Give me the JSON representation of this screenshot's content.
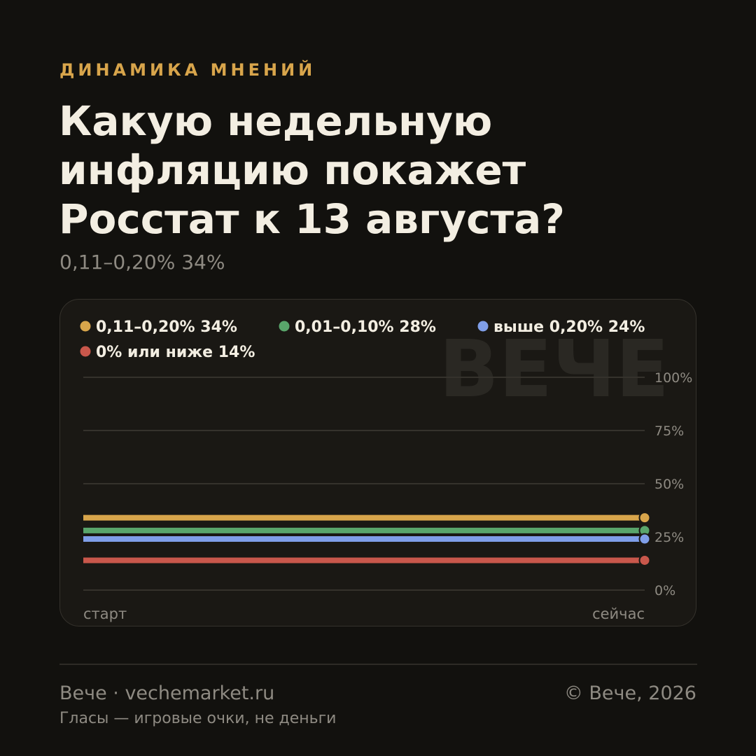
{
  "header": {
    "kicker": "ДИНАМИКА МНЕНИЙ",
    "title": "Какую недельную инфляцию покажет Росстат к 13 августа?",
    "subtitle": "0,11–0,20% 34%"
  },
  "watermark": "ВЕЧЕ",
  "chart_data": {
    "type": "line",
    "title": "",
    "xlabel": "",
    "ylabel": "",
    "x": [
      "старт",
      "сейчас"
    ],
    "x_tick_labels": [
      "старт",
      "сейчас"
    ],
    "ylim": [
      0,
      100
    ],
    "y_ticks": [
      0,
      25,
      50,
      75,
      100
    ],
    "y_tick_labels": [
      "0%",
      "25%",
      "50%",
      "75%",
      "100%"
    ],
    "grid": true,
    "legend_position": "top-left",
    "series": [
      {
        "name": "0,11–0,20%",
        "legend_label": "0,11–0,20% 34%",
        "color": "#d8a54b",
        "values": [
          34,
          34
        ]
      },
      {
        "name": "0,01–0,10%",
        "legend_label": "0,01–0,10% 28%",
        "color": "#59a56b",
        "values": [
          28,
          28
        ]
      },
      {
        "name": "выше 0,20%",
        "legend_label": "выше 0,20% 24%",
        "color": "#7f9ee8",
        "values": [
          24,
          24
        ]
      },
      {
        "name": "0% или ниже",
        "legend_label": "0% или ниже 14%",
        "color": "#c9574b",
        "values": [
          14,
          14
        ]
      }
    ]
  },
  "footer": {
    "site": "Вече · vechemarket.ru",
    "note": "Гласы — игровые очки, не деньги",
    "copyright": "© Вече, 2026"
  }
}
